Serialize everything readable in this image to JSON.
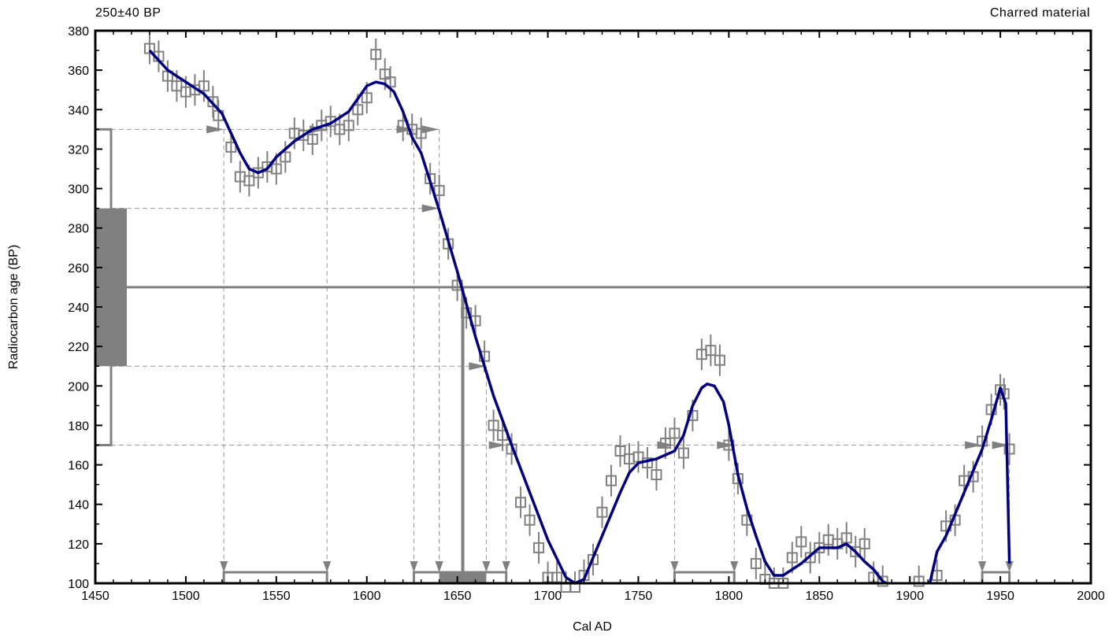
{
  "header": {
    "left": "250±40 BP",
    "right": "Charred material"
  },
  "chart_data": {
    "type": "line",
    "xlabel": "Cal AD",
    "ylabel": "Radiocarbon age (BP)",
    "xlim": [
      1450,
      2000
    ],
    "ylim": [
      100,
      380
    ],
    "x_ticks": [
      1450,
      1500,
      1550,
      1600,
      1650,
      1700,
      1750,
      1800,
      1850,
      1900,
      1950,
      2000
    ],
    "y_ticks": [
      100,
      120,
      140,
      160,
      180,
      200,
      220,
      240,
      260,
      280,
      300,
      320,
      340,
      360,
      380
    ],
    "grid": false,
    "sample": {
      "age": 250,
      "error": 40,
      "sigma1": [
        210,
        290
      ],
      "sigma2": [
        170,
        330
      ]
    },
    "curve_color": "#000080",
    "data_color": "#808080",
    "series": [
      {
        "type": "line",
        "x": [
          1480,
          1490,
          1500,
          1510,
          1520,
          1525,
          1530,
          1535,
          1540,
          1545,
          1550,
          1560,
          1570,
          1580,
          1590,
          1600,
          1605,
          1610,
          1615,
          1620,
          1625,
          1630,
          1640,
          1650,
          1660,
          1670,
          1680,
          1690,
          1700,
          1710,
          1715,
          1720,
          1730,
          1740,
          1745,
          1750,
          1760,
          1770,
          1775,
          1780,
          1785,
          1788,
          1792,
          1797,
          1800,
          1805,
          1810,
          1815,
          1820,
          1825,
          1830,
          1840,
          1845,
          1850,
          1860,
          1865,
          1870,
          1875,
          1880,
          1885,
          1887
        ],
        "y": [
          370,
          360,
          354,
          348,
          338,
          328,
          318,
          310,
          308,
          310,
          316,
          324,
          330,
          333,
          339,
          352,
          354,
          353,
          349,
          339,
          326,
          318,
          289,
          258,
          225,
          195,
          170,
          146,
          122,
          103,
          100,
          102,
          124,
          146,
          156,
          161,
          163,
          167,
          175,
          190,
          199,
          201,
          200,
          192,
          180,
          155,
          138,
          124,
          111,
          104,
          104,
          110,
          114,
          118,
          118,
          120,
          116,
          111,
          107,
          101,
          96
        ]
      },
      {
        "type": "line",
        "x": [
          1911,
          1915,
          1920,
          1930,
          1940,
          1945,
          1950,
          1953,
          1955
        ],
        "y": [
          100,
          116,
          124,
          146,
          168,
          183,
          199,
          191,
          110
        ]
      },
      {
        "type": "scatter",
        "x": [
          1480,
          1485,
          1490,
          1495,
          1500,
          1505,
          1510,
          1515,
          1518,
          1525,
          1530,
          1535,
          1540,
          1545,
          1550,
          1555,
          1560,
          1565,
          1570,
          1575,
          1580,
          1585,
          1590,
          1595,
          1600,
          1605,
          1610,
          1613,
          1620,
          1625,
          1630,
          1635,
          1640,
          1645,
          1650,
          1655,
          1660,
          1665,
          1670,
          1675,
          1680,
          1685,
          1690,
          1695,
          1700,
          1705,
          1710,
          1715,
          1720,
          1725,
          1730,
          1735,
          1740,
          1745,
          1750,
          1755,
          1760,
          1765,
          1770,
          1775,
          1780,
          1785,
          1790,
          1795,
          1800,
          1805,
          1810,
          1815,
          1820,
          1825,
          1830,
          1835,
          1840,
          1845,
          1850,
          1855,
          1860,
          1865,
          1870,
          1875,
          1880,
          1885,
          1905,
          1915,
          1920,
          1925,
          1930,
          1935,
          1940,
          1945,
          1950,
          1952,
          1955
        ],
        "y": [
          371,
          367,
          357,
          352,
          349,
          350,
          352,
          344,
          337,
          321,
          306,
          304,
          308,
          311,
          310,
          316,
          328,
          327,
          325,
          332,
          334,
          330,
          332,
          340,
          346,
          368,
          358,
          354,
          332,
          330,
          328,
          305,
          299,
          272,
          251,
          237,
          233,
          215,
          180,
          175,
          168,
          141,
          132,
          118,
          103,
          103,
          98,
          98,
          104,
          112,
          136,
          152,
          167,
          163,
          164,
          161,
          155,
          171,
          176,
          166,
          185,
          216,
          218,
          213,
          170,
          153,
          132,
          110,
          102,
          100,
          100,
          113,
          121,
          113,
          118,
          122,
          120,
          123,
          116,
          120,
          103,
          101,
          101,
          104,
          129,
          132,
          152,
          154,
          172,
          188,
          198,
          196,
          168
        ],
        "yerr": 8
      }
    ],
    "intercepts": [
      {
        "y": 330,
        "x": [
          1521,
          1578,
          1626,
          1640
        ]
      },
      {
        "y": 290,
        "x": [
          1640
        ]
      },
      {
        "y": 210,
        "x": [
          1666
        ]
      },
      {
        "y": 170,
        "x": [
          1677,
          1770,
          1803,
          1940,
          1955
        ]
      }
    ],
    "range_2sigma": [
      [
        1521,
        1578
      ],
      [
        1626,
        1677
      ],
      [
        1770,
        1803
      ],
      [
        1940,
        1955
      ]
    ],
    "range_1sigma": [
      [
        1640,
        1666
      ]
    ],
    "median": 1653
  }
}
